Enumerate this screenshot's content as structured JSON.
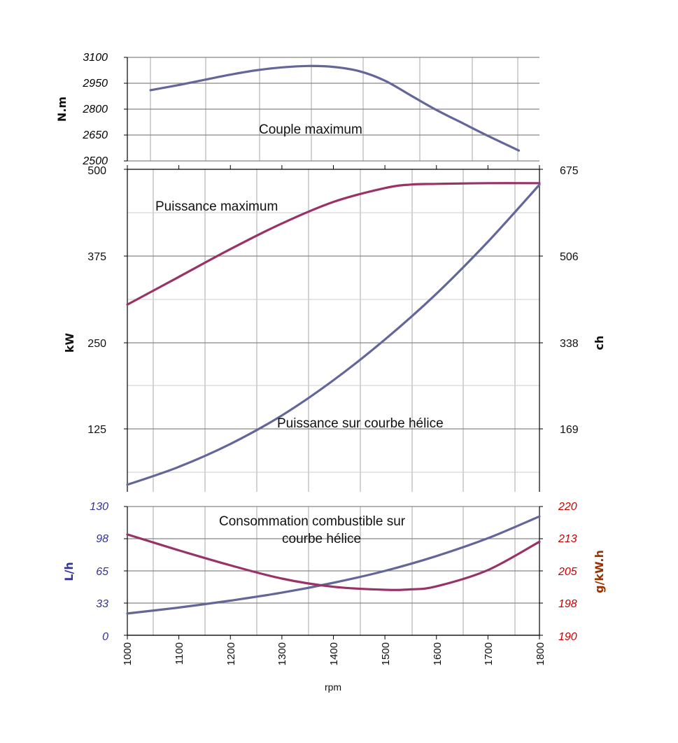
{
  "colors": {
    "blue_series": "#636699",
    "red_series": "#993366",
    "left_axis_blue": "#333399",
    "right_axis_red": "#cc0000",
    "right_label_brown": "#993300",
    "grid": "#bbbbbb",
    "hline": "#888888"
  },
  "x_axis": {
    "label": "rpm",
    "range": [
      1000,
      1800
    ],
    "ticks": [
      "1000",
      "1100",
      "1200",
      "1300",
      "1400",
      "1500",
      "1600",
      "1700",
      "1800"
    ]
  },
  "chart_data": [
    {
      "type": "line",
      "panel": "top",
      "ylabel": "N.m",
      "ylim": [
        2500,
        3100
      ],
      "yticks": [
        "3100",
        "2950",
        "2800",
        "2650",
        "2500"
      ],
      "grid": true,
      "annotation": "Couple maximum",
      "series": [
        {
          "x": [
            1045,
            1100,
            1150,
            1200,
            1250,
            1300,
            1350,
            1400,
            1450,
            1500,
            1550,
            1600,
            1650,
            1700,
            1760
          ],
          "values": [
            2910,
            2940,
            2970,
            3000,
            3025,
            3042,
            3050,
            3045,
            3020,
            2965,
            2880,
            2795,
            2720,
            2645,
            2560
          ]
        }
      ]
    },
    {
      "type": "line",
      "panel": "middle",
      "ylabel": "kW",
      "ylim": [
        0,
        500
      ],
      "yticks": [
        "500",
        "375",
        "250",
        "125"
      ],
      "y2label": "ch",
      "y2ticks": [
        "675",
        "506",
        "338",
        "169"
      ],
      "grid": true,
      "annotations": [
        "Puissance maximum",
        "Puissance sur courbe hélice"
      ],
      "series": [
        {
          "x": [
            1000,
            1100,
            1200,
            1300,
            1400,
            1500,
            1550,
            1600,
            1700,
            1800
          ],
          "values": [
            305,
            345,
            385,
            422,
            453,
            473,
            478,
            479,
            480,
            480
          ]
        },
        {
          "x": [
            1000,
            1100,
            1200,
            1300,
            1400,
            1500,
            1600,
            1700,
            1800
          ],
          "values": [
            60,
            95,
            140,
            196,
            265,
            345,
            435,
            537,
            650
          ]
        }
      ]
    },
    {
      "type": "line",
      "panel": "bottom",
      "ylabel": "L/h",
      "ylim": [
        0,
        130
      ],
      "yticks": [
        "130",
        "98",
        "65",
        "33",
        "0"
      ],
      "y2label": "g/kW.h",
      "y2lim": [
        190,
        220
      ],
      "y2ticks": [
        "220",
        "213",
        "205",
        "198",
        "190"
      ],
      "grid": true,
      "annotation": [
        "Consommation combustible sur",
        "courbe hélice"
      ],
      "series": [
        {
          "axis": "left",
          "x": [
            1000,
            1100,
            1200,
            1300,
            1400,
            1500,
            1600,
            1700,
            1800
          ],
          "values": [
            22,
            28,
            35,
            43,
            53,
            65,
            80,
            98,
            120
          ]
        },
        {
          "axis": "right",
          "x": [
            1000,
            1100,
            1200,
            1300,
            1400,
            1500,
            1550,
            1600,
            1700,
            1800
          ],
          "values": [
            213.5,
            209.8,
            206.3,
            203.2,
            201.3,
            200.6,
            200.7,
            201.4,
            205.2,
            211.8
          ]
        }
      ]
    }
  ]
}
